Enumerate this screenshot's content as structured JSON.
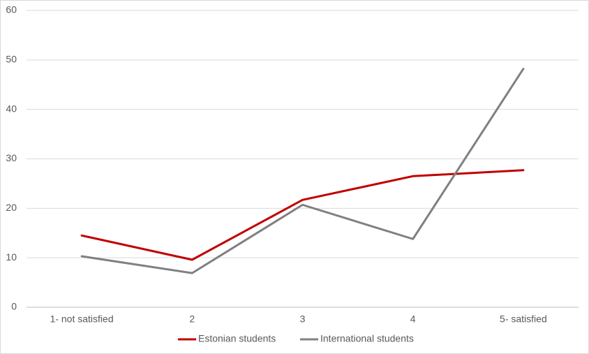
{
  "chart_data": {
    "type": "line",
    "categories": [
      "1- not satisfied",
      "2",
      "3",
      "4",
      "5- satisfied"
    ],
    "series": [
      {
        "name": "Estonian students",
        "color": "#c00000",
        "values": [
          14.5,
          9.6,
          21.7,
          26.5,
          27.7
        ]
      },
      {
        "name": "International students",
        "color": "#808080",
        "values": [
          10.3,
          6.9,
          20.7,
          13.8,
          48.2
        ]
      }
    ],
    "ylim": [
      0,
      60
    ],
    "yticks": [
      0,
      10,
      20,
      30,
      40,
      50,
      60
    ],
    "grid": true,
    "legend": "bottom"
  }
}
